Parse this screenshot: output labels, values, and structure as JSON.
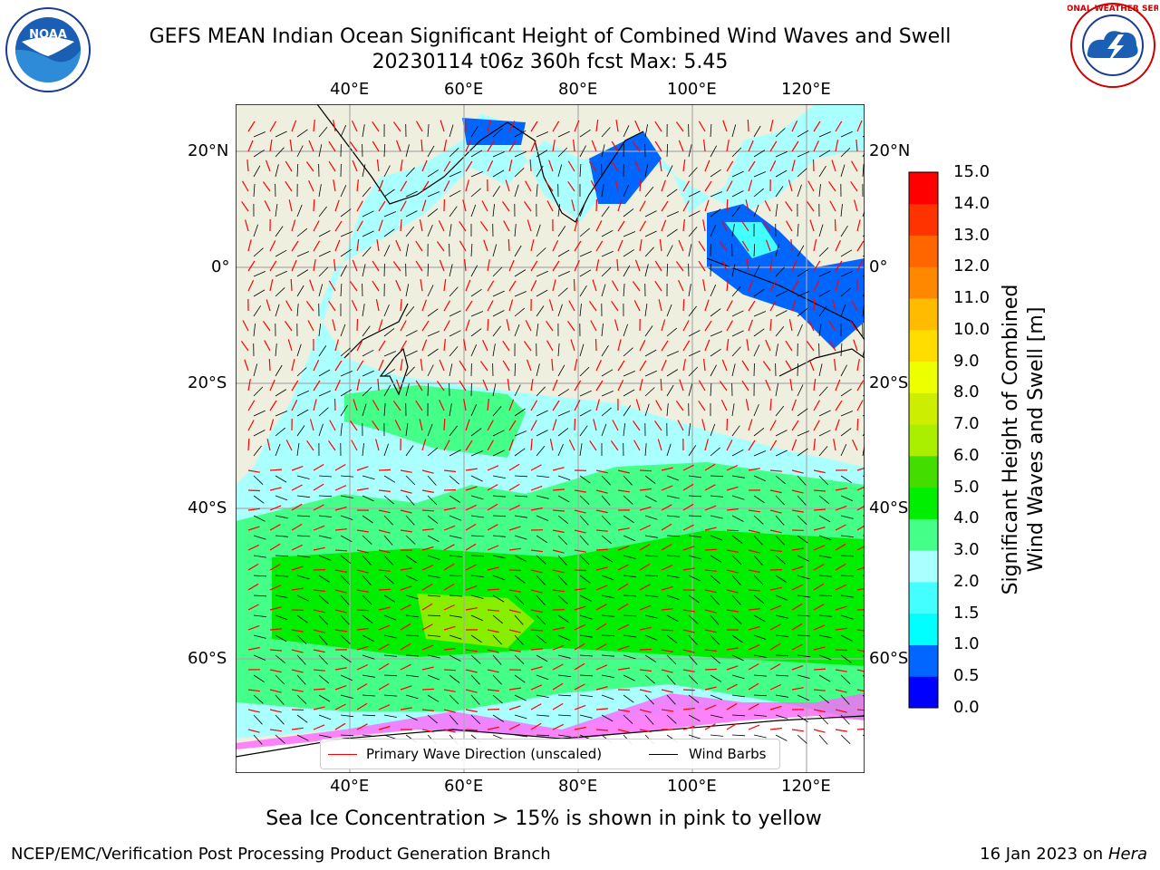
{
  "title": {
    "line1": "GEFS MEAN Indian Ocean Significant Height of Combined Wind Waves and Swell",
    "line2": "20230114 t06z 360h fcst   Max: 5.45"
  },
  "logos": {
    "left": {
      "name": "noaa-logo",
      "text": "NOAA"
    },
    "right": {
      "name": "nws-logo",
      "text": "NATIONAL WEATHER SERVICE"
    }
  },
  "map": {
    "lon_ticks": [
      "40°E",
      "60°E",
      "80°E",
      "100°E",
      "120°E"
    ],
    "lat_ticks": [
      "20°N",
      "0°",
      "20°S",
      "40°S",
      "60°S"
    ],
    "lon_range": [
      20,
      130
    ],
    "lat_range": [
      -75,
      28
    ],
    "colors": {
      "land": "#efefdf",
      "ice": "#ff66ff",
      "grid": "#aaaaaa",
      "wave_arrow": "#ff0000",
      "barb": "#000000"
    }
  },
  "legend": {
    "wave_label": "Primary Wave Direction (unscaled)",
    "barb_label": "Wind Barbs"
  },
  "colorbar": {
    "label_line1": "Significant Height of Combined",
    "label_line2": "Wind Waves and Swell [m]",
    "ticks": [
      "0.0",
      "0.5",
      "1.0",
      "1.5",
      "2.0",
      "3.0",
      "4.0",
      "5.0",
      "6.0",
      "7.0",
      "8.0",
      "9.0",
      "10.0",
      "11.0",
      "12.0",
      "13.0",
      "14.0",
      "15.0"
    ],
    "colors": [
      "#0000ff",
      "#0066ff",
      "#00ffff",
      "#44ffff",
      "#aaffff",
      "#44ff88",
      "#00ee00",
      "#44dd00",
      "#aaee00",
      "#ccee00",
      "#eeff00",
      "#ffdd00",
      "#ffbb00",
      "#ff8800",
      "#ff6600",
      "#ff3300",
      "#ff0000"
    ]
  },
  "footer": {
    "note": "Sea Ice Concentration > 15% is shown in pink to yellow",
    "credit": "NCEP/EMC/Verification Post Processing Product Generation Branch",
    "run_date": "16 Jan 2023 on ",
    "host": "Hera"
  }
}
